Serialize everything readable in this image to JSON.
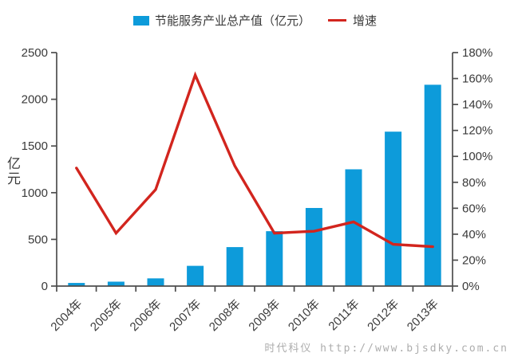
{
  "page": {
    "background": "#ffffff"
  },
  "legend": {
    "bar_label": "节能服务产业总产值（亿元）",
    "line_label": "增速"
  },
  "watermark": {
    "text": "时代科仪 http://www.bjsdky.com.cn",
    "color": "#adadad"
  },
  "chart_data": {
    "type": "bar",
    "subtype": "bar-line combo, dual y-axes",
    "title": "",
    "categories": [
      "2004年",
      "2005年",
      "2006年",
      "2007年",
      "2008年",
      "2009年",
      "2010年",
      "2011年",
      "2012年",
      "2013年"
    ],
    "series": [
      {
        "name": "节能服务产业总产值（亿元）",
        "type": "bar",
        "axis": "left",
        "color": "#0d9bda",
        "values": [
          33.6,
          47.3,
          82.5,
          216.7,
          417.3,
          587.7,
          836.3,
          1250.3,
          1653.4,
          2155.6
        ]
      },
      {
        "name": "增速",
        "type": "line",
        "axis": "right",
        "color": "#d2251e",
        "values_percent": [
          91.0,
          40.8,
          74.4,
          162.7,
          92.6,
          40.8,
          42.3,
          49.5,
          32.2,
          30.4
        ]
      }
    ],
    "left_axis": {
      "title": "亿元",
      "min": 0,
      "max": 2500,
      "step": 500,
      "tick_labels": [
        "0",
        "500",
        "1000",
        "1500",
        "2000",
        "2500"
      ]
    },
    "right_axis": {
      "title": "",
      "min": 0,
      "max": 180,
      "step": 20,
      "tick_labels": [
        "0%",
        "20%",
        "40%",
        "60%",
        "80%",
        "100%",
        "120%",
        "140%",
        "160%",
        "180%"
      ]
    },
    "x_axis": {
      "label_rotation_deg": -45
    },
    "legend_position": "top",
    "grid": false,
    "axis_color": "#4d4d4d",
    "text_color": "#3a3a3a"
  }
}
